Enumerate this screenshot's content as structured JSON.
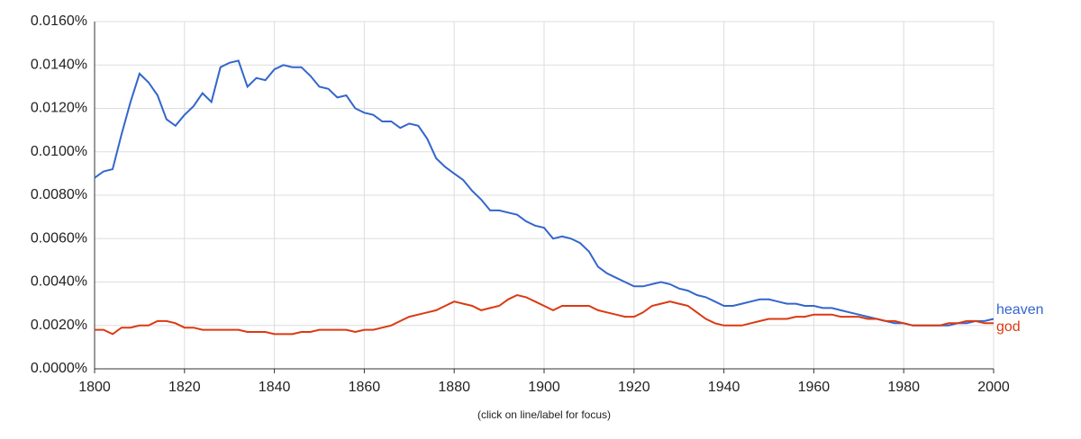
{
  "chart_data": {
    "type": "line",
    "note": "(click on line/label for focus)",
    "x": [
      1800,
      1802,
      1804,
      1806,
      1808,
      1810,
      1812,
      1814,
      1816,
      1818,
      1820,
      1822,
      1824,
      1826,
      1828,
      1830,
      1832,
      1834,
      1836,
      1838,
      1840,
      1842,
      1844,
      1846,
      1848,
      1850,
      1852,
      1854,
      1856,
      1858,
      1860,
      1862,
      1864,
      1866,
      1868,
      1870,
      1872,
      1874,
      1876,
      1878,
      1880,
      1882,
      1884,
      1886,
      1888,
      1890,
      1892,
      1894,
      1896,
      1898,
      1900,
      1902,
      1904,
      1906,
      1908,
      1910,
      1912,
      1914,
      1916,
      1918,
      1920,
      1922,
      1924,
      1926,
      1928,
      1930,
      1932,
      1934,
      1936,
      1938,
      1940,
      1942,
      1944,
      1946,
      1948,
      1950,
      1952,
      1954,
      1956,
      1958,
      1960,
      1962,
      1964,
      1966,
      1968,
      1970,
      1972,
      1974,
      1976,
      1978,
      1980,
      1982,
      1984,
      1986,
      1988,
      1990,
      1992,
      1994,
      1996,
      1998,
      2000
    ],
    "series": [
      {
        "name": "heaven",
        "color": "#3366cc",
        "values": [
          0.0088,
          0.0091,
          0.0092,
          0.0108,
          0.0123,
          0.0136,
          0.0132,
          0.0126,
          0.0115,
          0.0112,
          0.0117,
          0.0121,
          0.0127,
          0.0123,
          0.0139,
          0.0141,
          0.0142,
          0.013,
          0.0134,
          0.0133,
          0.0138,
          0.014,
          0.0139,
          0.0139,
          0.0135,
          0.013,
          0.0129,
          0.0125,
          0.0126,
          0.012,
          0.0118,
          0.0117,
          0.0114,
          0.0114,
          0.0111,
          0.0113,
          0.0112,
          0.0106,
          0.0097,
          0.0093,
          0.009,
          0.0087,
          0.0082,
          0.0078,
          0.0073,
          0.0073,
          0.0072,
          0.0071,
          0.0068,
          0.0066,
          0.0065,
          0.006,
          0.0061,
          0.006,
          0.0058,
          0.0054,
          0.0047,
          0.0044,
          0.0042,
          0.004,
          0.0038,
          0.0038,
          0.0039,
          0.004,
          0.0039,
          0.0037,
          0.0036,
          0.0034,
          0.0033,
          0.0031,
          0.0029,
          0.0029,
          0.003,
          0.0031,
          0.0032,
          0.0032,
          0.0031,
          0.003,
          0.003,
          0.0029,
          0.0029,
          0.0028,
          0.0028,
          0.0027,
          0.0026,
          0.0025,
          0.0024,
          0.0023,
          0.0022,
          0.0021,
          0.0021,
          0.002,
          0.002,
          0.002,
          0.002,
          0.002,
          0.0021,
          0.0021,
          0.0022,
          0.0022,
          0.0023
        ]
      },
      {
        "name": "god",
        "color": "#dc3912",
        "values": [
          0.0018,
          0.0018,
          0.0016,
          0.0019,
          0.0019,
          0.002,
          0.002,
          0.0022,
          0.0022,
          0.0021,
          0.0019,
          0.0019,
          0.0018,
          0.0018,
          0.0018,
          0.0018,
          0.0018,
          0.0017,
          0.0017,
          0.0017,
          0.0016,
          0.0016,
          0.0016,
          0.0017,
          0.0017,
          0.0018,
          0.0018,
          0.0018,
          0.0018,
          0.0017,
          0.0018,
          0.0018,
          0.0019,
          0.002,
          0.0022,
          0.0024,
          0.0025,
          0.0026,
          0.0027,
          0.0029,
          0.0031,
          0.003,
          0.0029,
          0.0027,
          0.0028,
          0.0029,
          0.0032,
          0.0034,
          0.0033,
          0.0031,
          0.0029,
          0.0027,
          0.0029,
          0.0029,
          0.0029,
          0.0029,
          0.0027,
          0.0026,
          0.0025,
          0.0024,
          0.0024,
          0.0026,
          0.0029,
          0.003,
          0.0031,
          0.003,
          0.0029,
          0.0026,
          0.0023,
          0.0021,
          0.002,
          0.002,
          0.002,
          0.0021,
          0.0022,
          0.0023,
          0.0023,
          0.0023,
          0.0024,
          0.0024,
          0.0025,
          0.0025,
          0.0025,
          0.0024,
          0.0024,
          0.0024,
          0.0023,
          0.0023,
          0.0022,
          0.0022,
          0.0021,
          0.002,
          0.002,
          0.002,
          0.002,
          0.0021,
          0.0021,
          0.0022,
          0.0022,
          0.0021,
          0.0021
        ]
      }
    ],
    "xlim": [
      1800,
      2000
    ],
    "xticks": [
      1800,
      1820,
      1840,
      1860,
      1880,
      1900,
      1920,
      1940,
      1960,
      1980,
      2000
    ],
    "ylim": [
      0,
      0.016
    ],
    "yticks": [
      {
        "value": 0,
        "label": "0.0000%"
      },
      {
        "value": 0.002,
        "label": "0.0020%"
      },
      {
        "value": 0.004,
        "label": "0.0040%"
      },
      {
        "value": 0.006,
        "label": "0.0060%"
      },
      {
        "value": 0.008,
        "label": "0.0080%"
      },
      {
        "value": 0.01,
        "label": "0.0100%"
      },
      {
        "value": 0.012,
        "label": "0.0120%"
      },
      {
        "value": 0.014,
        "label": "0.0140%"
      },
      {
        "value": 0.016,
        "label": "0.0160%"
      }
    ],
    "grid": true
  }
}
